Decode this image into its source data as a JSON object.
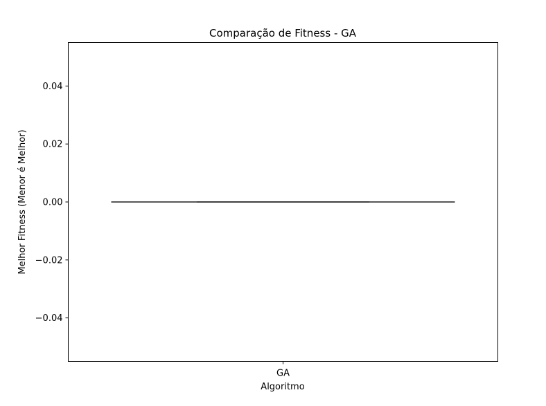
{
  "chart_data": {
    "type": "box",
    "title": "Comparação de Fitness - GA",
    "xlabel": "Algoritmo",
    "ylabel": "Melhor Fitness (Menor é Melhor)",
    "categories": [
      "GA"
    ],
    "series": [
      {
        "category": "GA",
        "min": 0.0,
        "q1": 0.0,
        "median": 0.0,
        "q3": 0.0,
        "max": 0.0
      }
    ],
    "ylim": [
      -0.055,
      0.055
    ],
    "yticks": [
      0.04,
      0.02,
      0.0,
      -0.02,
      -0.04
    ],
    "ytick_labels": [
      "0.04",
      "0.02",
      "0.00",
      "−0.02",
      "−0.04"
    ],
    "grid": false,
    "colors": {
      "box_line": "#3f3f3f",
      "axes": "#000000"
    }
  }
}
